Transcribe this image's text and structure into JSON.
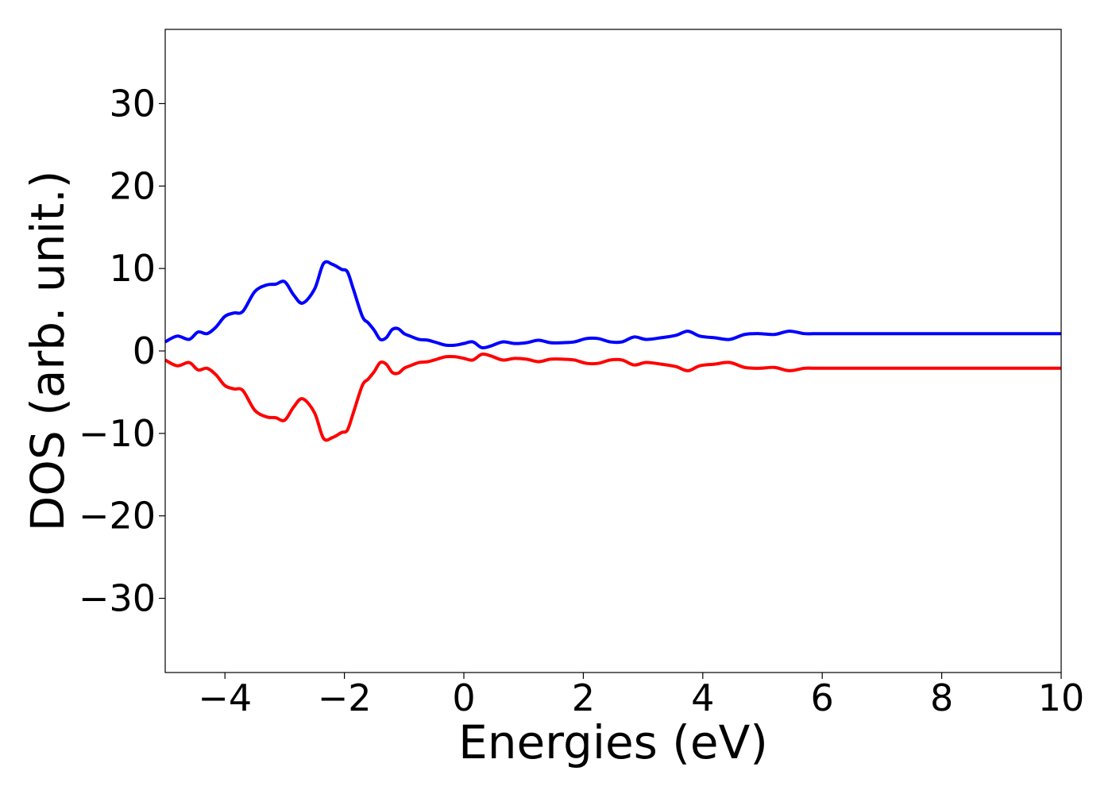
{
  "chart_data": {
    "type": "line",
    "xlabel": "Energies (eV)",
    "ylabel": "DOS (arb. unit.)",
    "xlim": [
      -5,
      10
    ],
    "ylim": [
      -39,
      39
    ],
    "x_ticks": [
      -4,
      -2,
      0,
      2,
      4,
      6,
      8,
      10
    ],
    "x_tick_labels": [
      "−4",
      "−2",
      "0",
      "2",
      "4",
      "6",
      "8",
      "10"
    ],
    "y_ticks": [
      30,
      20,
      10,
      0,
      -10,
      -20,
      -30
    ],
    "y_tick_labels": [
      "30",
      "20",
      "10",
      "0",
      "−10",
      "−20",
      "−30"
    ],
    "grid": false,
    "legend": "none",
    "series": [
      {
        "color": "#0000ff",
        "x": [
          -5.0,
          -4.8,
          -4.6,
          -4.45,
          -4.3,
          -4.15,
          -4.0,
          -3.85,
          -3.7,
          -3.5,
          -3.3,
          -3.15,
          -3.0,
          -2.85,
          -2.7,
          -2.5,
          -2.35,
          -2.2,
          -2.05,
          -1.95,
          -1.85,
          -1.7,
          -1.6,
          -1.5,
          -1.4,
          -1.3,
          -1.2,
          -1.1,
          -1.0,
          -0.9,
          -0.75,
          -0.6,
          -0.45,
          -0.3,
          -0.15,
          0.0,
          0.15,
          0.3,
          0.45,
          0.65,
          0.85,
          1.05,
          1.25,
          1.45,
          1.65,
          1.85,
          2.05,
          2.25,
          2.45,
          2.65,
          2.85,
          3.05,
          3.3,
          3.55,
          3.75,
          3.95,
          4.2,
          4.45,
          4.7,
          4.95,
          5.2,
          5.45,
          5.7,
          5.9,
          6.1,
          6.35,
          6.6,
          6.85,
          7.05,
          7.3,
          7.55,
          7.8,
          8.0,
          8.25,
          8.5,
          8.75,
          9.0,
          9.2,
          9.4,
          9.6,
          9.8,
          10.0
        ],
        "y": [
          1.1,
          1.8,
          1.4,
          2.3,
          2.1,
          2.9,
          4.2,
          4.6,
          4.8,
          7.2,
          8.0,
          8.1,
          8.4,
          6.8,
          5.8,
          7.5,
          10.6,
          10.5,
          9.9,
          9.6,
          7.5,
          4.2,
          3.4,
          2.5,
          1.4,
          1.6,
          2.6,
          2.7,
          2.1,
          1.8,
          1.4,
          1.3,
          1.0,
          0.7,
          0.7,
          0.9,
          1.1,
          0.4,
          0.6,
          1.1,
          0.9,
          1.0,
          1.3,
          1.0,
          1.0,
          1.1,
          1.5,
          1.5,
          1.1,
          1.1,
          1.7,
          1.4,
          1.6,
          1.9,
          2.4,
          1.8,
          1.6,
          1.4,
          2.0,
          2.1,
          2.0,
          2.4,
          2.1,
          2.1,
          2.1,
          2.1,
          2.1,
          2.1,
          2.1,
          2.1,
          2.1,
          2.1,
          2.1,
          2.1,
          2.1,
          2.1,
          2.1,
          2.1,
          2.1,
          2.1,
          2.1,
          2.1
        ]
      },
      {
        "color": "#ff0000",
        "x": [
          -5.0,
          -4.8,
          -4.6,
          -4.45,
          -4.3,
          -4.15,
          -4.0,
          -3.85,
          -3.7,
          -3.5,
          -3.3,
          -3.15,
          -3.0,
          -2.85,
          -2.7,
          -2.5,
          -2.35,
          -2.2,
          -2.05,
          -1.95,
          -1.85,
          -1.7,
          -1.6,
          -1.5,
          -1.4,
          -1.3,
          -1.2,
          -1.1,
          -1.0,
          -0.9,
          -0.75,
          -0.6,
          -0.45,
          -0.3,
          -0.15,
          0.0,
          0.15,
          0.3,
          0.45,
          0.65,
          0.85,
          1.05,
          1.25,
          1.45,
          1.65,
          1.85,
          2.05,
          2.25,
          2.45,
          2.65,
          2.85,
          3.05,
          3.3,
          3.55,
          3.75,
          3.95,
          4.2,
          4.45,
          4.7,
          4.95,
          5.2,
          5.45,
          5.7,
          5.9,
          6.1,
          6.35,
          6.6,
          6.85,
          7.05,
          7.3,
          7.55,
          7.8,
          8.0,
          8.25,
          8.5,
          8.75,
          9.0,
          9.2,
          9.4,
          9.6,
          9.8,
          10.0
        ],
        "y": [
          -1.1,
          -1.8,
          -1.4,
          -2.3,
          -2.1,
          -2.9,
          -4.2,
          -4.6,
          -4.8,
          -7.2,
          -8.0,
          -8.1,
          -8.4,
          -6.8,
          -5.8,
          -7.5,
          -10.6,
          -10.5,
          -9.9,
          -9.6,
          -7.5,
          -4.2,
          -3.4,
          -2.5,
          -1.4,
          -1.6,
          -2.6,
          -2.7,
          -2.1,
          -1.8,
          -1.4,
          -1.3,
          -1.0,
          -0.7,
          -0.7,
          -0.9,
          -1.1,
          -0.4,
          -0.6,
          -1.1,
          -0.9,
          -1.0,
          -1.3,
          -1.0,
          -1.0,
          -1.1,
          -1.5,
          -1.5,
          -1.1,
          -1.1,
          -1.7,
          -1.4,
          -1.6,
          -1.9,
          -2.4,
          -1.8,
          -1.6,
          -1.4,
          -2.0,
          -2.1,
          -2.0,
          -2.4,
          -2.1,
          -2.1,
          -2.1,
          -2.1,
          -2.1,
          -2.1,
          -2.1,
          -2.1,
          -2.1,
          -2.1,
          -2.1,
          -2.1,
          -2.1,
          -2.1,
          -2.1,
          -2.1,
          -2.1,
          -2.1,
          -2.1,
          -2.1
        ]
      }
    ]
  }
}
